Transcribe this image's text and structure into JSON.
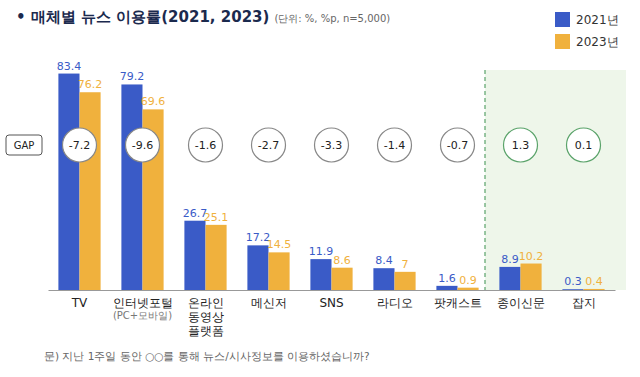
{
  "chart_data": {
    "type": "bar",
    "title": "• 매체별 뉴스 이용률(2021, 2023)",
    "subtitle": "(단위: %, %p, n=5,000)",
    "categories": [
      "TV",
      "인터넷포털\n(PC+모바일)",
      "온라인\n동영상\n플랫폼",
      "메신저",
      "SNS",
      "라디오",
      "팟캐스트",
      "종이신문",
      "잡지"
    ],
    "series": [
      {
        "name": "2021년",
        "color": "#3a5bc7",
        "values": [
          83.4,
          79.2,
          26.7,
          17.2,
          11.9,
          8.4,
          1.6,
          8.9,
          0.3
        ]
      },
      {
        "name": "2023년",
        "color": "#f0b13d",
        "values": [
          76.2,
          69.6,
          25.1,
          14.5,
          8.6,
          7,
          0.9,
          10.2,
          0.4
        ]
      }
    ],
    "gap": {
      "label": "GAP",
      "values": [
        -7.2,
        -9.6,
        -1.6,
        -2.7,
        -3.3,
        -1.4,
        -0.7,
        1.3,
        0.1
      ]
    },
    "footnote": "문) 지난 1주일 동안 ○○를 통해 뉴스/시사정보를 이용하셨습니까?",
    "ylim": [
      0,
      84
    ],
    "yticks": [],
    "tick_labels": "x",
    "data_labels": true,
    "legend": "top-right",
    "grid": false
  }
}
